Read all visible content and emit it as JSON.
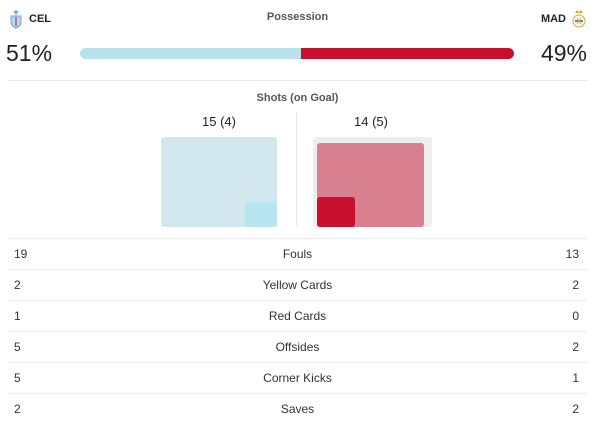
{
  "home": {
    "abbr": "CEL",
    "possession": "51%",
    "possession_value": 51,
    "shots": "15 (4)",
    "crest_color": "#6aa8d4"
  },
  "away": {
    "abbr": "MAD",
    "possession": "49%",
    "possession_value": 49,
    "shots": "14 (5)",
    "crest_color": "#d4af37"
  },
  "possession_title": "Possession",
  "shots_title": "Shots (on Goal)",
  "colors": {
    "home": "#b8e2ec",
    "away": "#c8102e"
  },
  "stats": [
    {
      "home": "19",
      "name": "Fouls",
      "away": "13"
    },
    {
      "home": "2",
      "name": "Yellow Cards",
      "away": "2"
    },
    {
      "home": "1",
      "name": "Red Cards",
      "away": "0"
    },
    {
      "home": "5",
      "name": "Offsides",
      "away": "2"
    },
    {
      "home": "5",
      "name": "Corner Kicks",
      "away": "1"
    },
    {
      "home": "2",
      "name": "Saves",
      "away": "2"
    }
  ]
}
